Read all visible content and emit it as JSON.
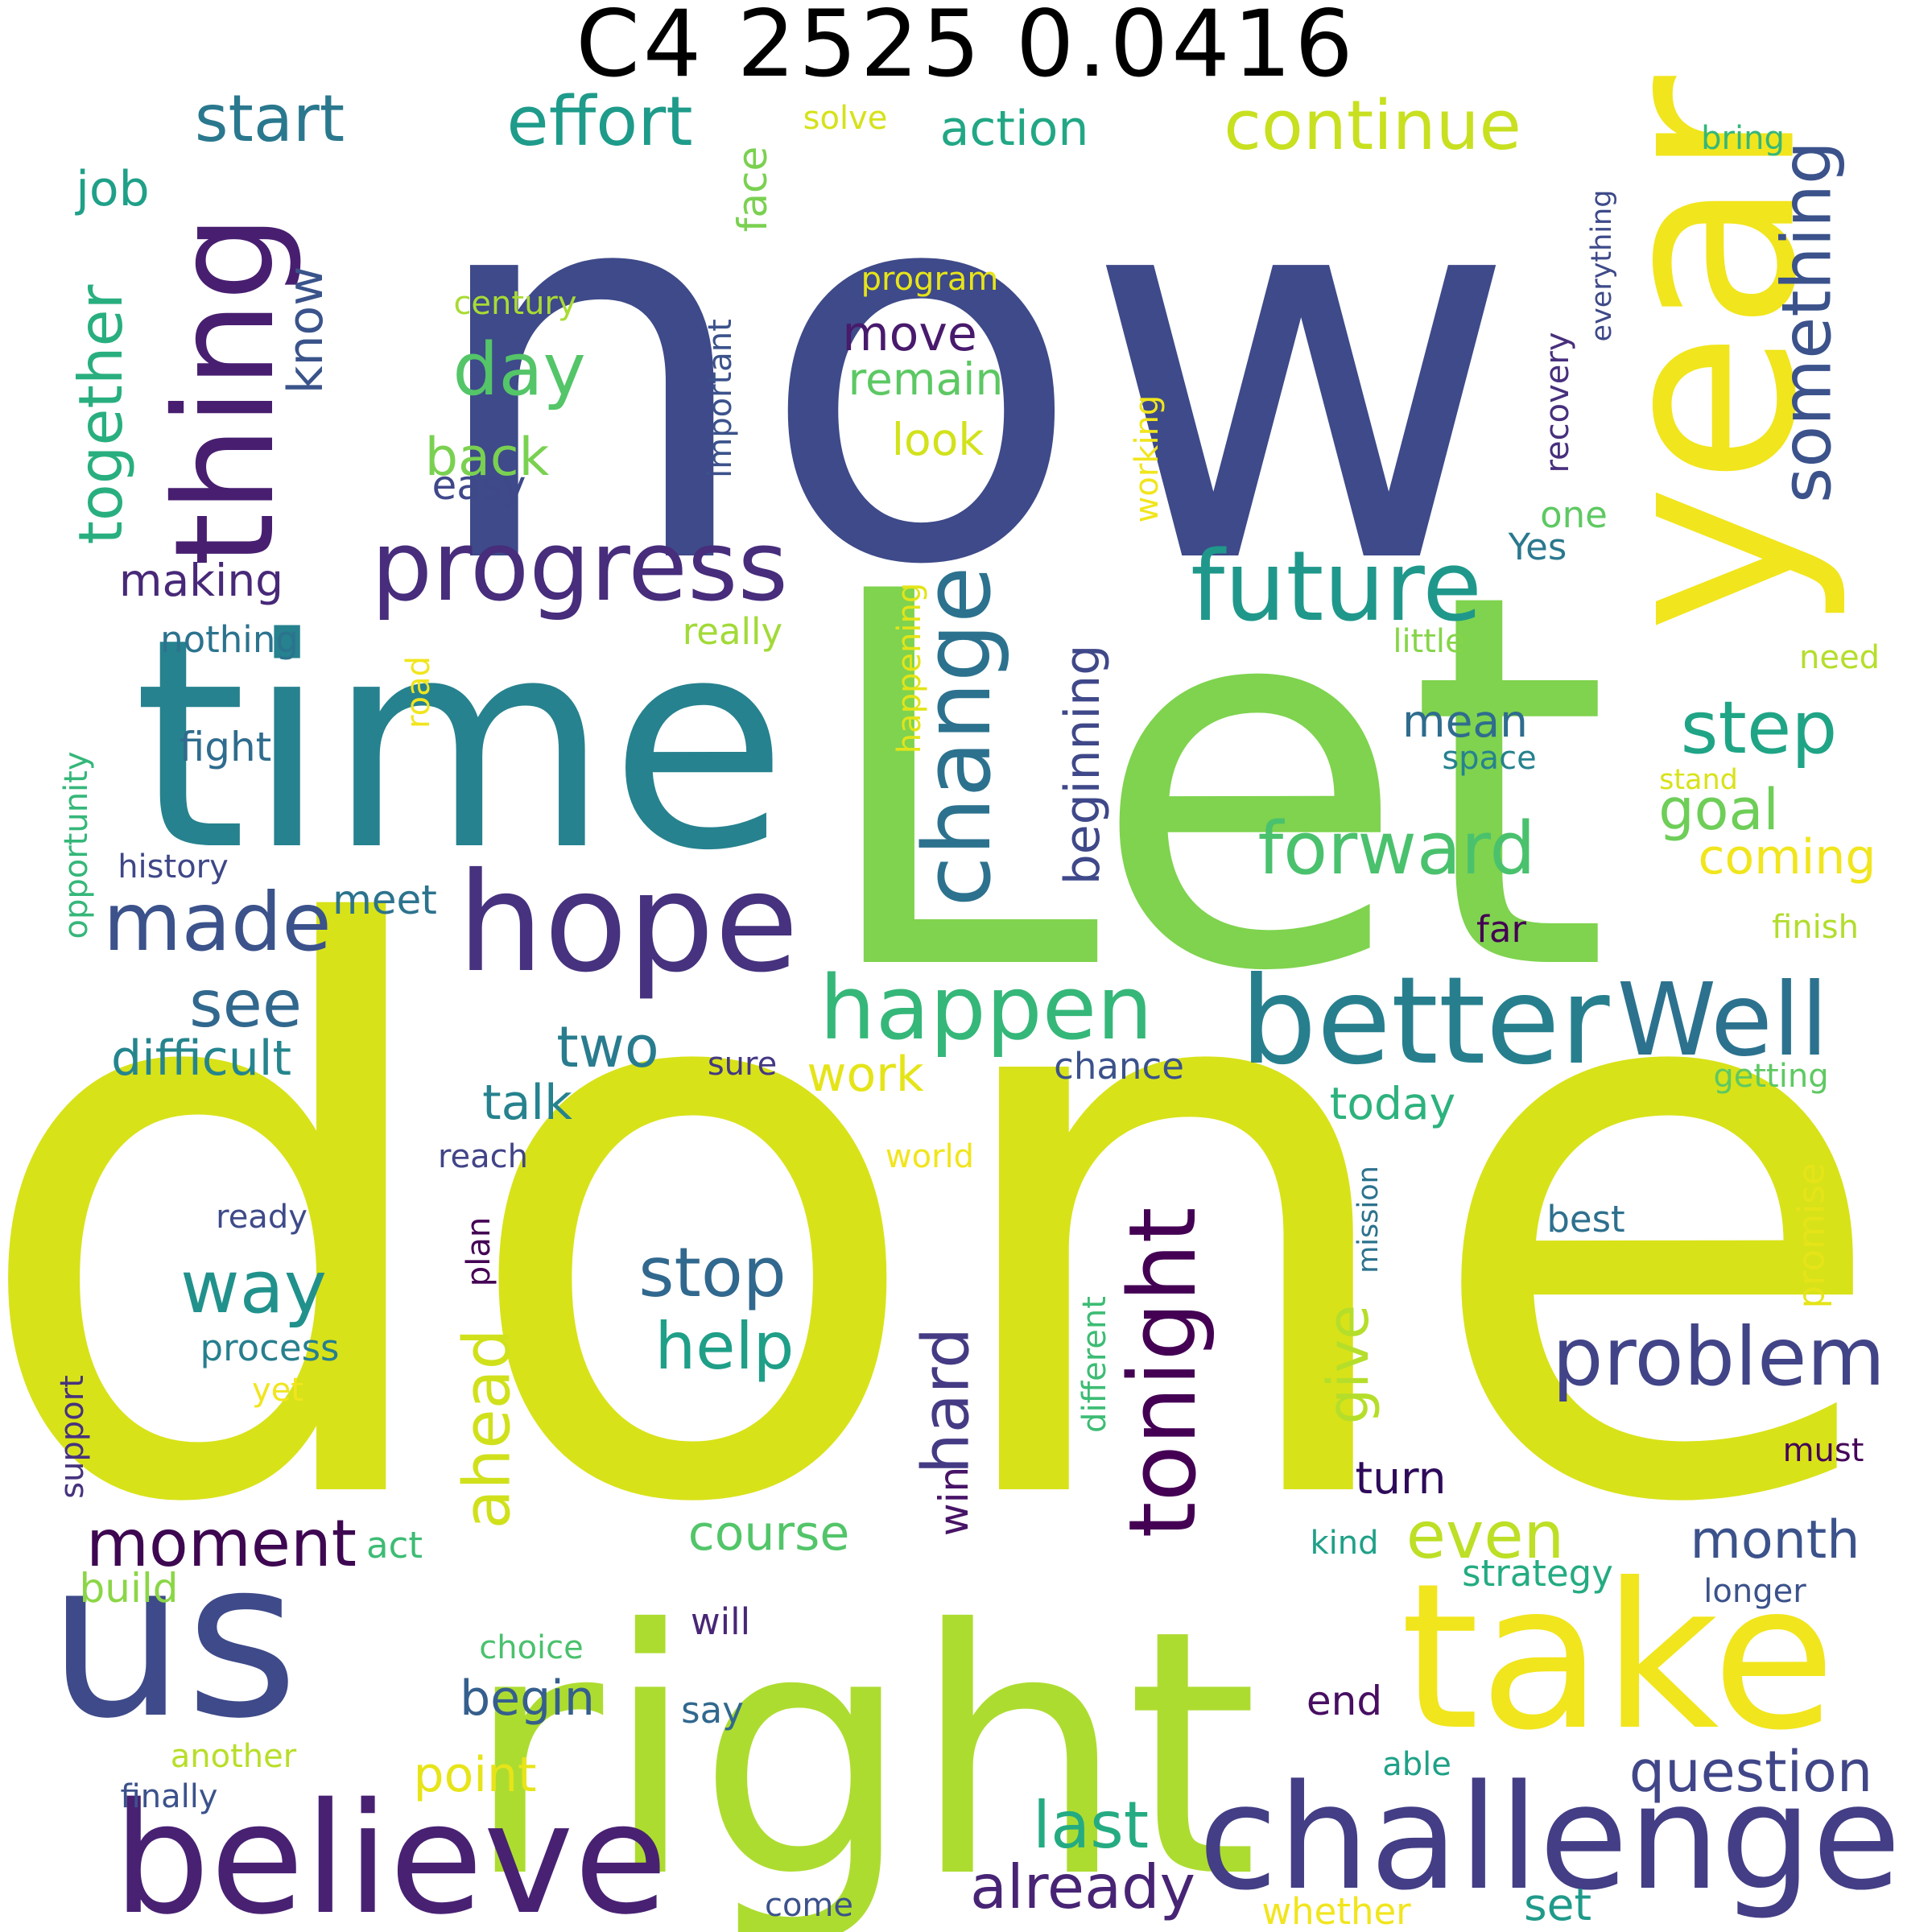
{
  "title": "C4 2525 0.0416",
  "words": [
    {
      "text": "now",
      "color": "#3e4a89"
    },
    {
      "text": "Let",
      "color": "#7fd34e"
    },
    {
      "text": "done",
      "color": "#d8e219"
    },
    {
      "text": "time",
      "color": "#26828e"
    },
    {
      "text": "right",
      "color": "#addc30"
    },
    {
      "text": "year",
      "color": "#f1e51d"
    },
    {
      "text": "take",
      "color": "#f1e51d"
    },
    {
      "text": "us",
      "color": "#3e4a89"
    },
    {
      "text": "believe",
      "color": "#482173"
    },
    {
      "text": "challenge",
      "color": "#433e85"
    },
    {
      "text": "hope",
      "color": "#46327e"
    },
    {
      "text": "better",
      "color": "#277f8e"
    },
    {
      "text": "thing",
      "color": "#481f70"
    },
    {
      "text": "progress",
      "color": "#472d7b"
    },
    {
      "text": "future",
      "color": "#1f988b"
    },
    {
      "text": "change",
      "color": "#2c728e"
    },
    {
      "text": "Well",
      "color": "#2c728e"
    },
    {
      "text": "happen",
      "color": "#35b779"
    },
    {
      "text": "tonight",
      "color": "#440154"
    },
    {
      "text": "something",
      "color": "#3b528b"
    },
    {
      "text": "made",
      "color": "#3b528b"
    },
    {
      "text": "problem",
      "color": "#414487"
    },
    {
      "text": "forward",
      "color": "#4ac16d"
    },
    {
      "text": "continue",
      "color": "#c8e020"
    },
    {
      "text": "effort",
      "color": "#1e9b8a"
    },
    {
      "text": "start",
      "color": "#2a788e"
    },
    {
      "text": "step",
      "color": "#20a486"
    },
    {
      "text": "day",
      "color": "#54c568"
    },
    {
      "text": "together",
      "color": "#29af7f"
    },
    {
      "text": "way",
      "color": "#21918c"
    },
    {
      "text": "stop",
      "color": "#31688e"
    },
    {
      "text": "help",
      "color": "#1f9f88"
    },
    {
      "text": "ahead",
      "color": "#d0e11c"
    },
    {
      "text": "moment",
      "color": "#3e0751"
    },
    {
      "text": "last",
      "color": "#25ab82"
    },
    {
      "text": "already",
      "color": "#482475"
    },
    {
      "text": "question",
      "color": "#404688"
    },
    {
      "text": "even",
      "color": "#bddf26"
    },
    {
      "text": "hard",
      "color": "#443b84"
    },
    {
      "text": "give",
      "color": "#b5de2b"
    },
    {
      "text": "see",
      "color": "#31688e"
    },
    {
      "text": "two",
      "color": "#287c8e"
    },
    {
      "text": "difficult",
      "color": "#25858e"
    },
    {
      "text": "month",
      "color": "#3b528b"
    },
    {
      "text": "action",
      "color": "#22a785"
    },
    {
      "text": "beginning",
      "color": "#3f4889"
    },
    {
      "text": "goal",
      "color": "#6ece58"
    },
    {
      "text": "coming",
      "color": "#f1e51d"
    },
    {
      "text": "job",
      "color": "#1fa088"
    },
    {
      "text": "know",
      "color": "#3a538b"
    },
    {
      "text": "move",
      "color": "#481a6c"
    },
    {
      "text": "remain",
      "color": "#5cc863"
    },
    {
      "text": "back",
      "color": "#7ad151"
    },
    {
      "text": "look",
      "color": "#d2e21b"
    },
    {
      "text": "making",
      "color": "#482878"
    },
    {
      "text": "mean",
      "color": "#2f6c8e"
    },
    {
      "text": "work",
      "color": "#e5e419"
    },
    {
      "text": "talk",
      "color": "#26828e"
    },
    {
      "text": "today",
      "color": "#2db27d"
    },
    {
      "text": "course",
      "color": "#52c569"
    },
    {
      "text": "begin",
      "color": "#355f8d"
    },
    {
      "text": "point",
      "color": "#e7e419"
    },
    {
      "text": "turn",
      "color": "#2e0a5a"
    },
    {
      "text": "win",
      "color": "#481467"
    },
    {
      "text": "fight",
      "color": "#2f6c8e"
    },
    {
      "text": "meet",
      "color": "#2c738e"
    },
    {
      "text": "easy",
      "color": "#3f4889"
    },
    {
      "text": "face",
      "color": "#7ad151"
    },
    {
      "text": "solve",
      "color": "#d5e21a"
    },
    {
      "text": "century",
      "color": "#a8db34"
    },
    {
      "text": "program",
      "color": "#e7e419"
    },
    {
      "text": "important",
      "color": "#3b528b"
    },
    {
      "text": "working",
      "color": "#f1e51d"
    },
    {
      "text": "happening",
      "color": "#e2e418"
    },
    {
      "text": "really",
      "color": "#a2da37"
    },
    {
      "text": "nothing",
      "color": "#2c738e"
    },
    {
      "text": "road",
      "color": "#f1e51d"
    },
    {
      "text": "history",
      "color": "#3f4788"
    },
    {
      "text": "opportunity",
      "color": "#35b779"
    },
    {
      "text": "sure",
      "color": "#443983"
    },
    {
      "text": "chance",
      "color": "#3b528b"
    },
    {
      "text": "reach",
      "color": "#414487"
    },
    {
      "text": "world",
      "color": "#f1e51d"
    },
    {
      "text": "ready",
      "color": "#3e4a89"
    },
    {
      "text": "plan",
      "color": "#440154"
    },
    {
      "text": "process",
      "color": "#277f8e"
    },
    {
      "text": "yet",
      "color": "#f1e51d"
    },
    {
      "text": "support",
      "color": "#46327e"
    },
    {
      "text": "different",
      "color": "#3dbc74"
    },
    {
      "text": "act",
      "color": "#3dbc74"
    },
    {
      "text": "build",
      "color": "#8bd646"
    },
    {
      "text": "will",
      "color": "#482677"
    },
    {
      "text": "choice",
      "color": "#4ac16d"
    },
    {
      "text": "say",
      "color": "#31688e"
    },
    {
      "text": "another",
      "color": "#b8de29"
    },
    {
      "text": "finally",
      "color": "#3b528b"
    },
    {
      "text": "come",
      "color": "#3b528b"
    },
    {
      "text": "whether",
      "color": "#f1e51d"
    },
    {
      "text": "set",
      "color": "#1f9a8a"
    },
    {
      "text": "end",
      "color": "#470e61"
    },
    {
      "text": "able",
      "color": "#1fa187"
    },
    {
      "text": "strategy",
      "color": "#25ab82"
    },
    {
      "text": "kind",
      "color": "#1fa088"
    },
    {
      "text": "longer",
      "color": "#3b528b"
    },
    {
      "text": "mission",
      "color": "#2c728e"
    },
    {
      "text": "best",
      "color": "#2d708e"
    },
    {
      "text": "promise",
      "color": "#e5e419"
    },
    {
      "text": "must",
      "color": "#450559"
    },
    {
      "text": "getting",
      "color": "#5ec962"
    },
    {
      "text": "far",
      "color": "#440154"
    },
    {
      "text": "finish",
      "color": "#b2dd2d"
    },
    {
      "text": "stand",
      "color": "#d8e219"
    },
    {
      "text": "space",
      "color": "#26828e"
    },
    {
      "text": "need",
      "color": "#b5de2b"
    },
    {
      "text": "little",
      "color": "#86d549"
    },
    {
      "text": "Yes",
      "color": "#2a788e"
    },
    {
      "text": "one",
      "color": "#5ec962"
    },
    {
      "text": "recovery",
      "color": "#472f7d"
    },
    {
      "text": "everything",
      "color": "#3e4a89"
    },
    {
      "text": "bring",
      "color": "#35b779"
    }
  ]
}
